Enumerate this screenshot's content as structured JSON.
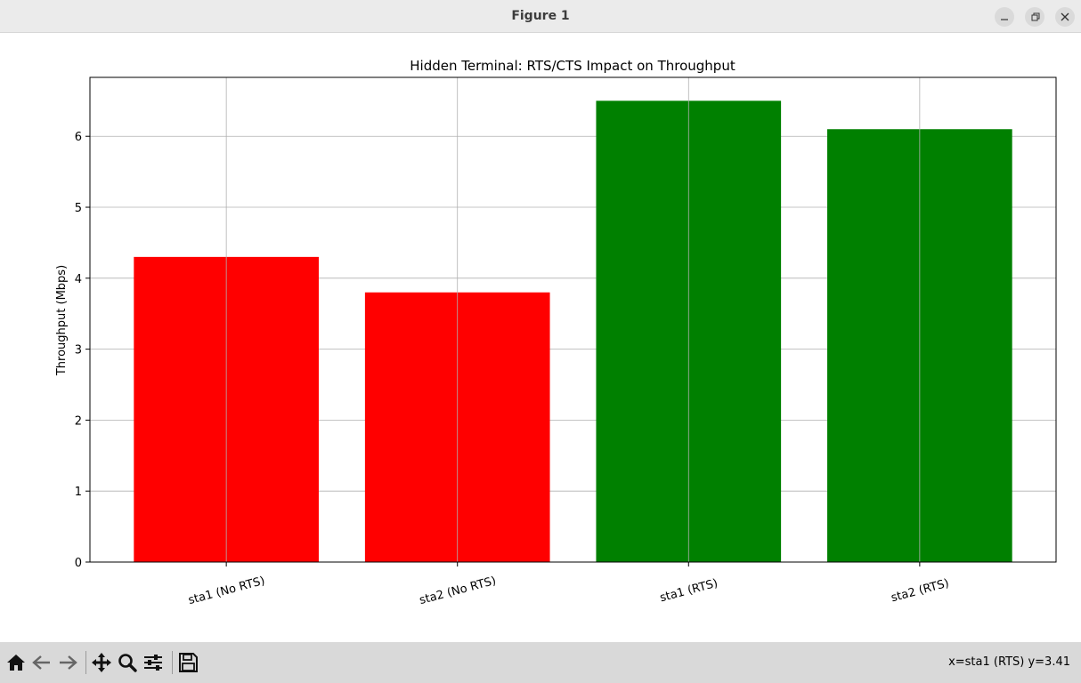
{
  "window": {
    "title": "Figure 1"
  },
  "toolbar": {
    "buttons": [
      {
        "name": "home-icon"
      },
      {
        "name": "back-icon"
      },
      {
        "name": "forward-icon"
      },
      {
        "name": "pan-icon"
      },
      {
        "name": "zoom-icon"
      },
      {
        "name": "configure-subplots-icon"
      },
      {
        "name": "save-icon"
      }
    ],
    "status": "x=sta1 (RTS) y=3.41"
  },
  "chart_data": {
    "type": "bar",
    "title": "Hidden Terminal: RTS/CTS Impact on Throughput",
    "xlabel": "",
    "ylabel": "Throughput (Mbps)",
    "categories": [
      "sta1 (No RTS)",
      "sta2 (No RTS)",
      "sta1 (RTS)",
      "sta2 (RTS)"
    ],
    "values": [
      4.3,
      3.8,
      6.5,
      6.1
    ],
    "colors": [
      "#ff0000",
      "#ff0000",
      "#008000",
      "#008000"
    ],
    "ylim": [
      0,
      6.83
    ],
    "yticks": [
      0,
      1,
      2,
      3,
      4,
      5,
      6
    ],
    "grid": true,
    "xtick_rotation": 15
  }
}
